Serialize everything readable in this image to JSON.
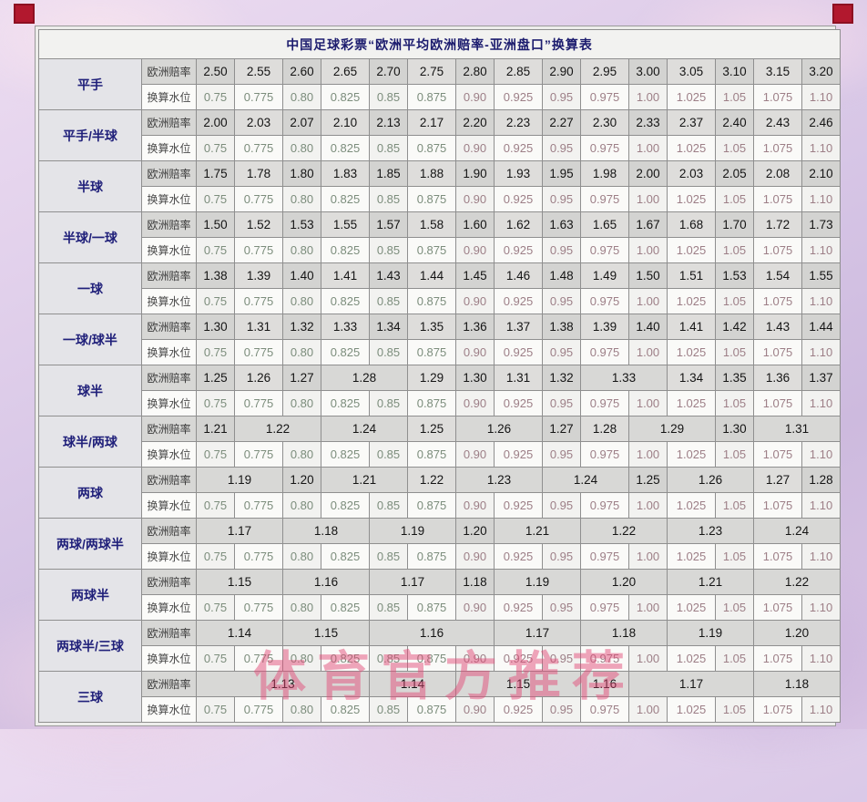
{
  "title": "中国足球彩票“欧洲平均欧洲赔率-亚洲盘口”换算表",
  "labels": {
    "odds": "欧洲赔率",
    "water": "换算水位"
  },
  "water_values": [
    "0.75",
    "0.775",
    "0.80",
    "0.825",
    "0.85",
    "0.875",
    "0.90",
    "0.925",
    "0.95",
    "0.975",
    "1.00",
    "1.025",
    "1.05",
    "1.075",
    "1.10"
  ],
  "watermark": "体育官方推荐",
  "colors": {
    "title_text": "#1c1c6e",
    "handicap_text": "#20207a",
    "odds_cell_bg": "#d3d3d1",
    "water_low_text": "#7c8d7c",
    "water_high_text": "#9d7f87",
    "stamp_red": "#b2182e",
    "watermark_pink": "rgba(225,72,118,0.48)"
  },
  "rows": [
    {
      "name": "平手",
      "odds": [
        [
          "2.50",
          1
        ],
        [
          "2.55",
          1
        ],
        [
          "2.60",
          1
        ],
        [
          "2.65",
          1
        ],
        [
          "2.70",
          1
        ],
        [
          "2.75",
          1
        ],
        [
          "2.80",
          1
        ],
        [
          "2.85",
          1
        ],
        [
          "2.90",
          1
        ],
        [
          "2.95",
          1
        ],
        [
          "3.00",
          1
        ],
        [
          "3.05",
          1
        ],
        [
          "3.10",
          1
        ],
        [
          "3.15",
          1
        ],
        [
          "3.20",
          1
        ]
      ]
    },
    {
      "name": "平手/半球",
      "odds": [
        [
          "2.00",
          1
        ],
        [
          "2.03",
          1
        ],
        [
          "2.07",
          1
        ],
        [
          "2.10",
          1
        ],
        [
          "2.13",
          1
        ],
        [
          "2.17",
          1
        ],
        [
          "2.20",
          1
        ],
        [
          "2.23",
          1
        ],
        [
          "2.27",
          1
        ],
        [
          "2.30",
          1
        ],
        [
          "2.33",
          1
        ],
        [
          "2.37",
          1
        ],
        [
          "2.40",
          1
        ],
        [
          "2.43",
          1
        ],
        [
          "2.46",
          1
        ]
      ]
    },
    {
      "name": "半球",
      "odds": [
        [
          "1.75",
          1
        ],
        [
          "1.78",
          1
        ],
        [
          "1.80",
          1
        ],
        [
          "1.83",
          1
        ],
        [
          "1.85",
          1
        ],
        [
          "1.88",
          1
        ],
        [
          "1.90",
          1
        ],
        [
          "1.93",
          1
        ],
        [
          "1.95",
          1
        ],
        [
          "1.98",
          1
        ],
        [
          "2.00",
          1
        ],
        [
          "2.03",
          1
        ],
        [
          "2.05",
          1
        ],
        [
          "2.08",
          1
        ],
        [
          "2.10",
          1
        ]
      ]
    },
    {
      "name": "半球/一球",
      "odds": [
        [
          "1.50",
          1
        ],
        [
          "1.52",
          1
        ],
        [
          "1.53",
          1
        ],
        [
          "1.55",
          1
        ],
        [
          "1.57",
          1
        ],
        [
          "1.58",
          1
        ],
        [
          "1.60",
          1
        ],
        [
          "1.62",
          1
        ],
        [
          "1.63",
          1
        ],
        [
          "1.65",
          1
        ],
        [
          "1.67",
          1
        ],
        [
          "1.68",
          1
        ],
        [
          "1.70",
          1
        ],
        [
          "1.72",
          1
        ],
        [
          "1.73",
          1
        ]
      ]
    },
    {
      "name": "一球",
      "odds": [
        [
          "1.38",
          1
        ],
        [
          "1.39",
          1
        ],
        [
          "1.40",
          1
        ],
        [
          "1.41",
          1
        ],
        [
          "1.43",
          1
        ],
        [
          "1.44",
          1
        ],
        [
          "1.45",
          1
        ],
        [
          "1.46",
          1
        ],
        [
          "1.48",
          1
        ],
        [
          "1.49",
          1
        ],
        [
          "1.50",
          1
        ],
        [
          "1.51",
          1
        ],
        [
          "1.53",
          1
        ],
        [
          "1.54",
          1
        ],
        [
          "1.55",
          1
        ]
      ]
    },
    {
      "name": "一球/球半",
      "odds": [
        [
          "1.30",
          1
        ],
        [
          "1.31",
          1
        ],
        [
          "1.32",
          1
        ],
        [
          "1.33",
          1
        ],
        [
          "1.34",
          1
        ],
        [
          "1.35",
          1
        ],
        [
          "1.36",
          1
        ],
        [
          "1.37",
          1
        ],
        [
          "1.38",
          1
        ],
        [
          "1.39",
          1
        ],
        [
          "1.40",
          1
        ],
        [
          "1.41",
          1
        ],
        [
          "1.42",
          1
        ],
        [
          "1.43",
          1
        ],
        [
          "1.44",
          1
        ]
      ]
    },
    {
      "name": "球半",
      "odds": [
        [
          "1.25",
          1
        ],
        [
          "1.26",
          1
        ],
        [
          "1.27",
          1
        ],
        [
          "1.28",
          2
        ],
        [
          "1.29",
          1
        ],
        [
          "1.30",
          1
        ],
        [
          "1.31",
          1
        ],
        [
          "1.32",
          1
        ],
        [
          "1.33",
          2
        ],
        [
          "1.34",
          1
        ],
        [
          "1.35",
          1
        ],
        [
          "1.36",
          1
        ],
        [
          "1.37",
          1
        ]
      ]
    },
    {
      "name": "球半/两球",
      "odds": [
        [
          "1.21",
          1
        ],
        [
          "1.22",
          2
        ],
        [
          "1.24",
          2
        ],
        [
          "1.25",
          1
        ],
        [
          "1.26",
          2
        ],
        [
          "1.27",
          1
        ],
        [
          "1.28",
          1
        ],
        [
          "1.29",
          2
        ],
        [
          "1.30",
          1
        ],
        [
          "1.31",
          2
        ]
      ]
    },
    {
      "name": "两球",
      "odds": [
        [
          "1.19",
          2
        ],
        [
          "1.20",
          1
        ],
        [
          "1.21",
          2
        ],
        [
          "1.22",
          1
        ],
        [
          "1.23",
          2
        ],
        [
          "1.24",
          2
        ],
        [
          "1.25",
          1
        ],
        [
          "1.26",
          2
        ],
        [
          "1.27",
          1
        ],
        [
          "1.28",
          1
        ]
      ]
    },
    {
      "name": "两球/两球半",
      "odds": [
        [
          "1.17",
          2
        ],
        [
          "1.18",
          2
        ],
        [
          "1.19",
          2
        ],
        [
          "1.20",
          1
        ],
        [
          "1.21",
          2
        ],
        [
          "1.22",
          2
        ],
        [
          "1.23",
          2
        ],
        [
          "1.24",
          2
        ]
      ]
    },
    {
      "name": "两球半",
      "odds": [
        [
          "1.15",
          2
        ],
        [
          "1.16",
          2
        ],
        [
          "1.17",
          2
        ],
        [
          "1.18",
          1
        ],
        [
          "1.19",
          2
        ],
        [
          "1.20",
          2
        ],
        [
          "1.21",
          2
        ],
        [
          "1.22",
          2
        ]
      ]
    },
    {
      "name": "两球半/三球",
      "odds": [
        [
          "1.14",
          2
        ],
        [
          "1.15",
          2
        ],
        [
          "1.16",
          3
        ],
        [
          "1.17",
          2
        ],
        [
          "1.18",
          2
        ],
        [
          "1.19",
          2
        ],
        [
          "1.20",
          2
        ]
      ]
    },
    {
      "name": "三球",
      "odds": [
        [
          "1.13",
          4
        ],
        [
          "1.14",
          2
        ],
        [
          "1.15",
          3
        ],
        [
          "1.16",
          1
        ],
        [
          "1.17",
          3
        ],
        [
          "1.18",
          2
        ]
      ]
    }
  ]
}
